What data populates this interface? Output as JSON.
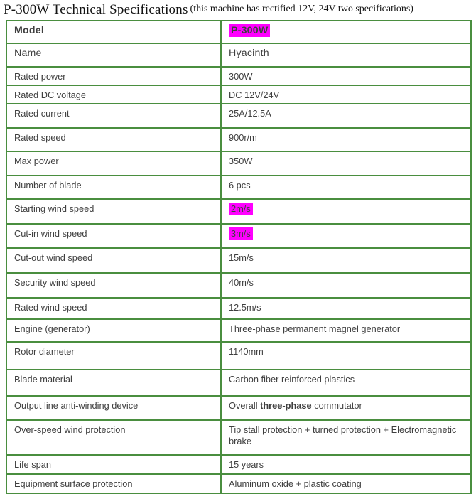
{
  "page": {
    "title": "P-300W Technical Specifications",
    "subtitle": "(this machine has rectified 12V, 24V two specifications)"
  },
  "colors": {
    "table_border": "#4a8e3f",
    "highlight": "#ff00ff",
    "cell_text": "#3f3f3f"
  },
  "table": {
    "rows": [
      {
        "label": "Model",
        "value": "P-300W",
        "label_bold": true,
        "value_bold": true,
        "value_highlight": true
      },
      {
        "label": "Name",
        "value": "Hyacinth"
      },
      {
        "label": "Rated power",
        "value": "300W"
      },
      {
        "label": "Rated DC voltage",
        "value": "DC 12V/24V"
      },
      {
        "label": "Rated current",
        "value": "25A/12.5A"
      },
      {
        "label": "Rated speed",
        "value": "900r/m"
      },
      {
        "label": "Max power",
        "value": "350W"
      },
      {
        "label": "Number of blade",
        "value": "6 pcs"
      },
      {
        "label": "Starting wind speed",
        "value": "2m/s",
        "value_highlight": true
      },
      {
        "label": "Cut-in wind speed",
        "value": "3m/s",
        "value_highlight": true
      },
      {
        "label": "Cut-out wind speed",
        "value": "15m/s"
      },
      {
        "label": "Security wind speed",
        "value": "40m/s"
      },
      {
        "label": "Rated wind speed",
        "value": "12.5m/s"
      },
      {
        "label": "Engine (generator)",
        "value": "Three-phase permanent magnel generator"
      },
      {
        "label": "Rotor diameter",
        "value": "1140mm"
      },
      {
        "label": "Blade material",
        "value": "Carbon fiber reinforced plastics"
      },
      {
        "label": "Output line anti-winding device",
        "value_runs": [
          {
            "text": "Overall ",
            "bold": false
          },
          {
            "text": "three-phase",
            "bold": true
          },
          {
            "text": " commutator",
            "bold": false
          }
        ]
      },
      {
        "label": "Over-speed wind protection",
        "value": "Tip stall protection + turned protection + Electromagnetic\nbrake"
      },
      {
        "label": "Life span",
        "value": "15 years"
      },
      {
        "label": "Equipment surface protection",
        "value": "Aluminum oxide + plastic coating"
      }
    ]
  }
}
